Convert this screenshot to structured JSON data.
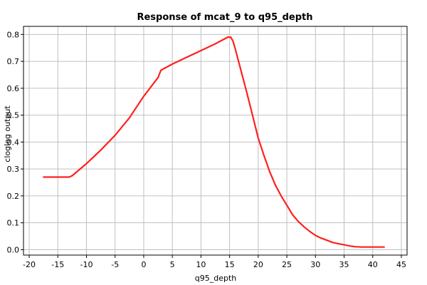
{
  "chart_data": {
    "type": "line",
    "title": "Response of mcat_9 to q95_depth",
    "xlabel": "q95_depth",
    "ylabel": "cloglog output",
    "xlim": [
      -21,
      46
    ],
    "ylim": [
      -0.02,
      0.83
    ],
    "xticks": [
      -20,
      -15,
      -10,
      -5,
      0,
      5,
      10,
      15,
      20,
      25,
      30,
      35,
      40,
      45
    ],
    "yticks": [
      0.0,
      0.1,
      0.2,
      0.3,
      0.4,
      0.5,
      0.6,
      0.7,
      0.8
    ],
    "ytick_labels": [
      "0.0",
      "0.1",
      "0.2",
      "0.3",
      "0.4",
      "0.5",
      "0.6",
      "0.7",
      "0.8"
    ],
    "grid": true,
    "series": [
      {
        "color": "#ff2020",
        "x": [
          -17.5,
          -13.0,
          -12.5,
          -10,
          -7.5,
          -5,
          -2.5,
          0,
          2.5,
          3,
          5,
          7.5,
          10,
          12.5,
          14.7,
          15.2,
          15.6,
          16,
          17,
          18,
          19,
          20,
          21,
          22,
          23,
          24,
          25,
          26,
          27,
          28,
          29,
          30,
          31,
          32,
          33,
          34,
          35,
          36,
          37,
          38,
          40,
          42
        ],
        "y": [
          0.27,
          0.27,
          0.275,
          0.32,
          0.37,
          0.425,
          0.49,
          0.57,
          0.64,
          0.667,
          0.69,
          0.715,
          0.74,
          0.765,
          0.79,
          0.79,
          0.775,
          0.745,
          0.665,
          0.585,
          0.5,
          0.415,
          0.35,
          0.29,
          0.24,
          0.2,
          0.165,
          0.13,
          0.105,
          0.085,
          0.068,
          0.053,
          0.043,
          0.035,
          0.027,
          0.022,
          0.018,
          0.014,
          0.011,
          0.01,
          0.01,
          0.01
        ]
      }
    ]
  }
}
